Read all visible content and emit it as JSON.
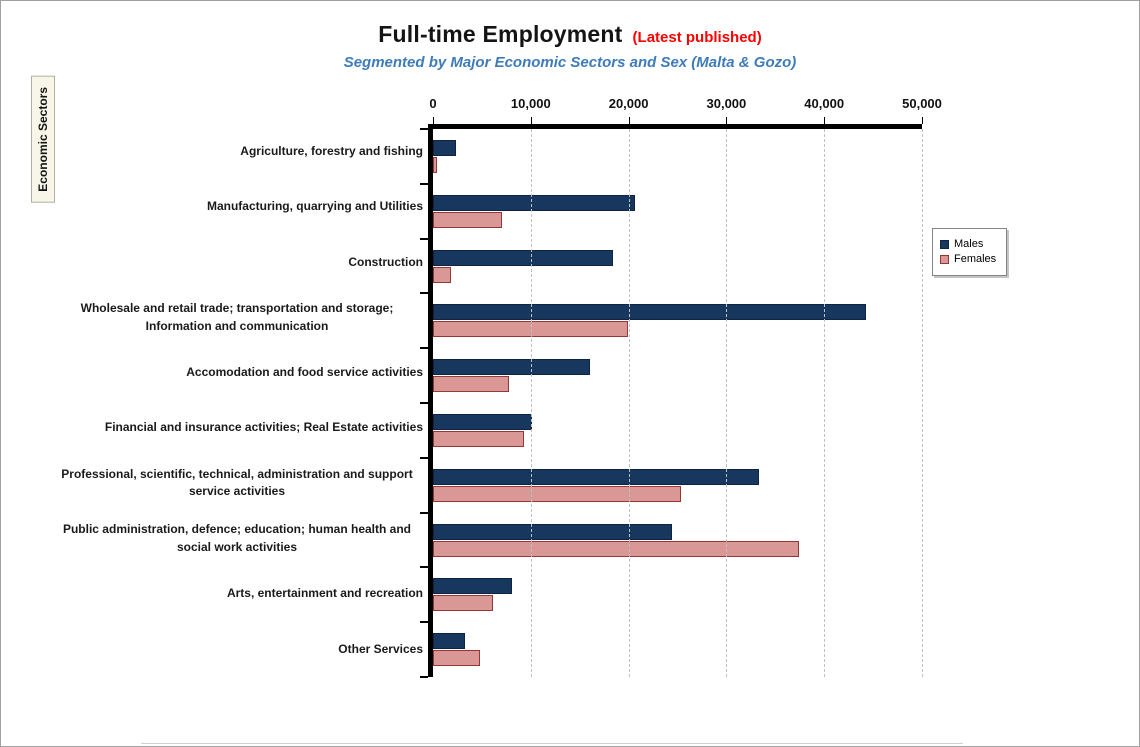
{
  "chart_data": {
    "type": "bar",
    "orientation": "horizontal",
    "title": "Full-time Employment",
    "title_note": "(Latest published)",
    "subtitle": "Segmented by Major Economic Sectors and Sex (Malta & Gozo)",
    "axis_label": "Economic Sectors",
    "x_tick_labels": [
      "0",
      "10,000",
      "20,000",
      "30,000",
      "40,000",
      "50,000"
    ],
    "xlim": [
      0,
      50000
    ],
    "grid": true,
    "legend_position": "right",
    "categories": [
      "Agriculture, forestry and fishing",
      "Manufacturing, quarrying and Utilities",
      "Construction",
      "Wholesale and retail trade; transportation and storage; Information and communication",
      "Accomodation and food service activities",
      "Financial and insurance activities; Real Estate activities",
      "Professional, scientific, technical, administration and support service activities",
      "Public administration, defence; education; human health and social work activities",
      "Arts, entertainment and recreation",
      "Other Services"
    ],
    "series": [
      {
        "name": "Males",
        "color": "#17375E",
        "border_color": "#0F2440",
        "values": [
          2400,
          20700,
          18400,
          44300,
          16100,
          10100,
          33300,
          24400,
          8100,
          3300
        ]
      },
      {
        "name": "Females",
        "color": "#D99795",
        "border_color": "#953735",
        "values": [
          400,
          7100,
          1800,
          19900,
          7800,
          9300,
          25400,
          37400,
          6100,
          4800
        ]
      }
    ]
  },
  "colors": {
    "title_note": "#FF0000",
    "subtitle": "#3E7CB9",
    "gridline": "#C0C0C0",
    "axis": "#000000",
    "ylabel_box_bg": "#F8F6E8"
  }
}
